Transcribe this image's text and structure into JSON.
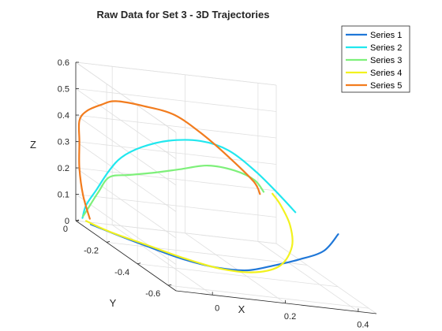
{
  "chart_data": {
    "type": "line3d",
    "title": "Raw Data for Set 3 - 3D Trajectories",
    "xlabel": "X",
    "ylabel": "Y",
    "zlabel": "Z",
    "xlim": [
      -0.1,
      0.45
    ],
    "ylim": [
      -0.65,
      0.0
    ],
    "zlim": [
      0,
      0.6
    ],
    "x_ticks": [
      "0",
      "0.2",
      "0.4"
    ],
    "y_ticks": [
      "0",
      "-0.2",
      "-0.4",
      "-0.6"
    ],
    "z_ticks": [
      "0",
      "0.1",
      "0.2",
      "0.3",
      "0.4",
      "0.5",
      "0.6"
    ],
    "grid": true,
    "legend_position": "outside-top-right",
    "series": [
      {
        "name": "Series 1",
        "color": "#1f77d8",
        "points": [
          [
            -0.08,
            -0.05,
            0.01
          ],
          [
            -0.05,
            -0.12,
            0.01
          ],
          [
            0.0,
            -0.22,
            0.01
          ],
          [
            0.06,
            -0.32,
            0.01
          ],
          [
            0.12,
            -0.4,
            0.02
          ],
          [
            0.18,
            -0.45,
            0.04
          ],
          [
            0.24,
            -0.48,
            0.08
          ],
          [
            0.3,
            -0.5,
            0.12
          ],
          [
            0.36,
            -0.52,
            0.17
          ],
          [
            0.4,
            -0.52,
            0.24
          ]
        ]
      },
      {
        "name": "Series 2",
        "color": "#21e7ee",
        "points": [
          [
            -0.09,
            -0.02,
            0.02
          ],
          [
            -0.08,
            -0.02,
            0.07
          ],
          [
            -0.06,
            -0.04,
            0.14
          ],
          [
            -0.03,
            -0.05,
            0.22
          ],
          [
            0.0,
            -0.06,
            0.28
          ],
          [
            0.05,
            -0.07,
            0.33
          ],
          [
            0.12,
            -0.08,
            0.37
          ],
          [
            0.2,
            -0.1,
            0.39
          ],
          [
            0.26,
            -0.14,
            0.38
          ],
          [
            0.3,
            -0.22,
            0.34
          ],
          [
            0.33,
            -0.3,
            0.29
          ],
          [
            0.35,
            -0.36,
            0.25
          ]
        ]
      },
      {
        "name": "Series 3",
        "color": "#7ef07a",
        "points": [
          [
            -0.08,
            0.0,
            0.02
          ],
          [
            -0.07,
            -0.02,
            0.07
          ],
          [
            -0.05,
            -0.03,
            0.13
          ],
          [
            -0.02,
            -0.03,
            0.19
          ],
          [
            0.03,
            -0.04,
            0.21
          ],
          [
            0.1,
            -0.04,
            0.23
          ],
          [
            0.16,
            -0.06,
            0.26
          ],
          [
            0.22,
            -0.1,
            0.3
          ],
          [
            0.26,
            -0.18,
            0.32
          ],
          [
            0.28,
            -0.26,
            0.32
          ],
          [
            0.28,
            -0.32,
            0.3
          ]
        ]
      },
      {
        "name": "Series 4",
        "color": "#f2f21e",
        "points": [
          [
            -0.08,
            -0.02,
            0.01
          ],
          [
            -0.04,
            -0.08,
            0.0
          ],
          [
            0.02,
            -0.18,
            0.0
          ],
          [
            0.08,
            -0.28,
            0.0
          ],
          [
            0.14,
            -0.38,
            0.01
          ],
          [
            0.2,
            -0.46,
            0.04
          ],
          [
            0.25,
            -0.5,
            0.09
          ],
          [
            0.29,
            -0.48,
            0.16
          ],
          [
            0.31,
            -0.42,
            0.22
          ],
          [
            0.31,
            -0.36,
            0.27
          ],
          [
            0.3,
            -0.33,
            0.3
          ]
        ]
      },
      {
        "name": "Series 5",
        "color": "#f27c1e",
        "points": [
          [
            -0.07,
            -0.02,
            0.02
          ],
          [
            -0.08,
            0.0,
            0.1
          ],
          [
            -0.09,
            0.0,
            0.2
          ],
          [
            -0.09,
            0.0,
            0.3
          ],
          [
            -0.09,
            0.0,
            0.38
          ],
          [
            -0.07,
            0.0,
            0.42
          ],
          [
            -0.03,
            0.0,
            0.45
          ],
          [
            0.01,
            0.0,
            0.47
          ],
          [
            0.08,
            -0.02,
            0.47
          ],
          [
            0.15,
            -0.05,
            0.46
          ],
          [
            0.2,
            -0.12,
            0.42
          ],
          [
            0.24,
            -0.2,
            0.37
          ],
          [
            0.27,
            -0.28,
            0.32
          ],
          [
            0.27,
            -0.32,
            0.29
          ]
        ]
      }
    ]
  }
}
